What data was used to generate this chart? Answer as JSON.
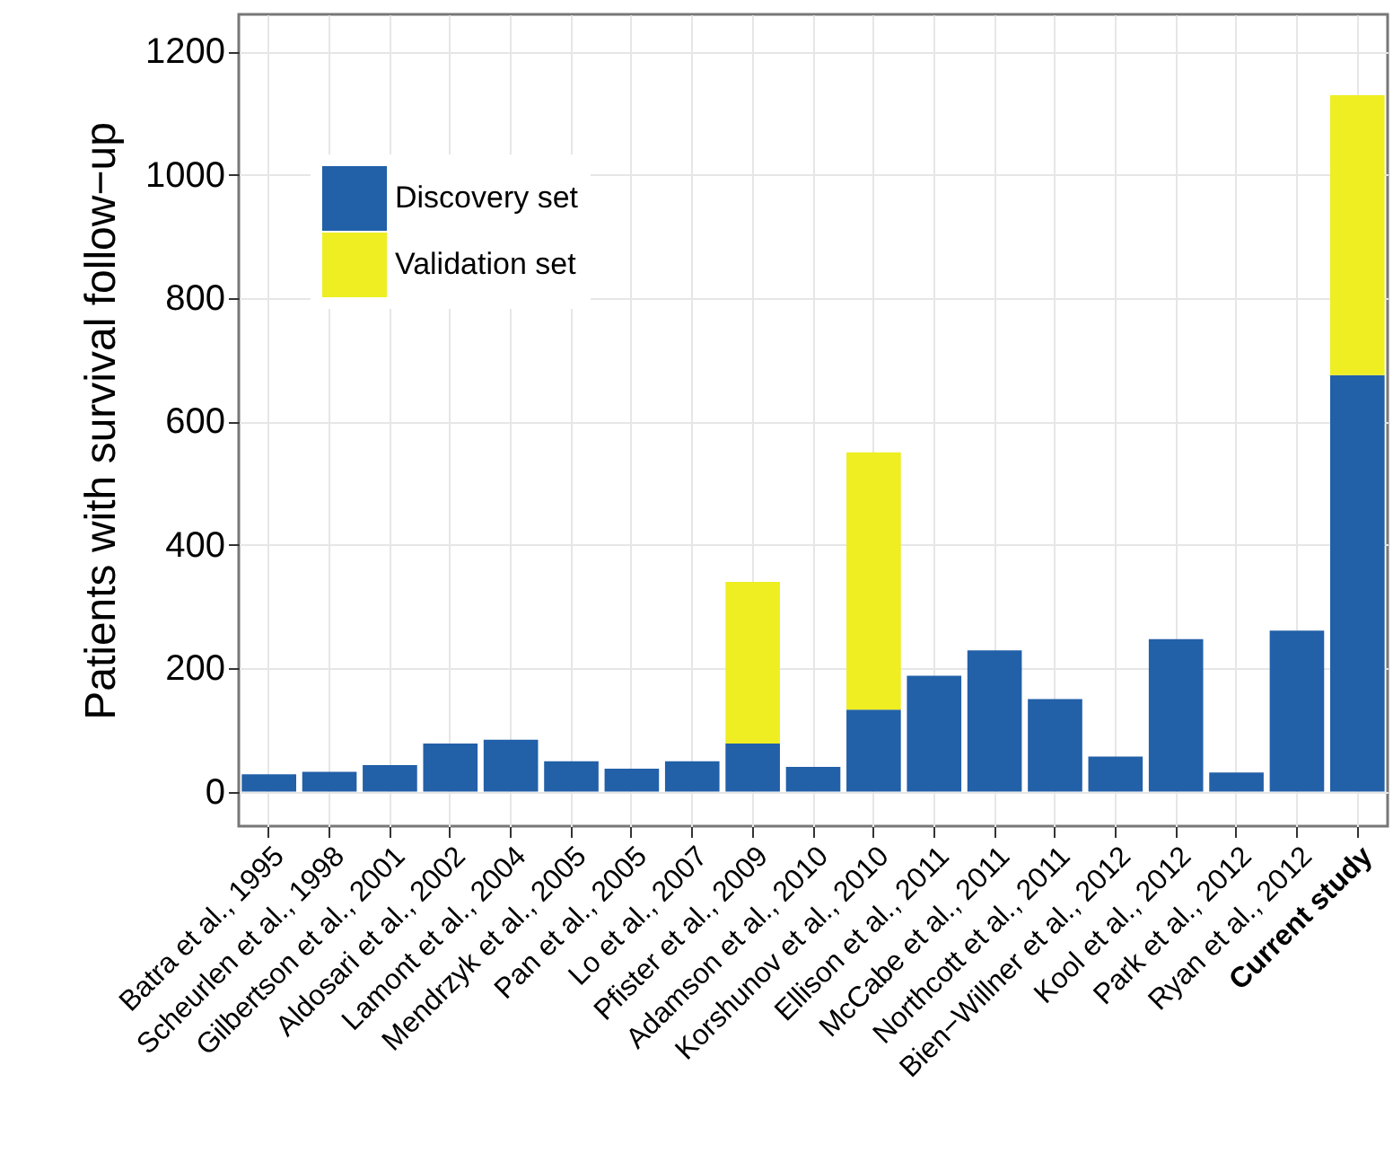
{
  "chart_data": {
    "type": "bar",
    "stacked": true,
    "ylabel": "Patients with survival follow−up",
    "categories": [
      "Batra et al., 1995",
      "Scheurlen et al., 1998",
      "Gilbertson et al., 2001",
      "Aldosari et al., 2002",
      "Lamont et al., 2004",
      "Mendrzyk et al., 2005",
      "Pan et al., 2005",
      "Lo et al., 2007",
      "Pfister et al., 2009",
      "Adamson et al., 2010",
      "Korshunov et al., 2010",
      "Ellison et al., 2011",
      "McCabe et al., 2011",
      "Northcott et al., 2011",
      "Bien−Willner et al., 2012",
      "Kool et al., 2012",
      "Park et al., 2012",
      "Ryan et al., 2012",
      "Current study"
    ],
    "series": [
      {
        "name": "Discovery set",
        "color": "#2260a8",
        "values": [
          28,
          32,
          43,
          78,
          84,
          49,
          37,
          49,
          78,
          40,
          133,
          188,
          229,
          150,
          57,
          247,
          31,
          261,
          675
        ]
      },
      {
        "name": "Validation set",
        "color": "#eeee22",
        "values": [
          null,
          null,
          null,
          null,
          null,
          null,
          null,
          null,
          262,
          null,
          417,
          null,
          null,
          null,
          null,
          null,
          null,
          null,
          454
        ]
      }
    ],
    "ylim": [
      -56,
      1260
    ],
    "yticks": [
      0,
      200,
      400,
      600,
      800,
      1000,
      1200
    ],
    "grid": true,
    "legend": "top left"
  }
}
